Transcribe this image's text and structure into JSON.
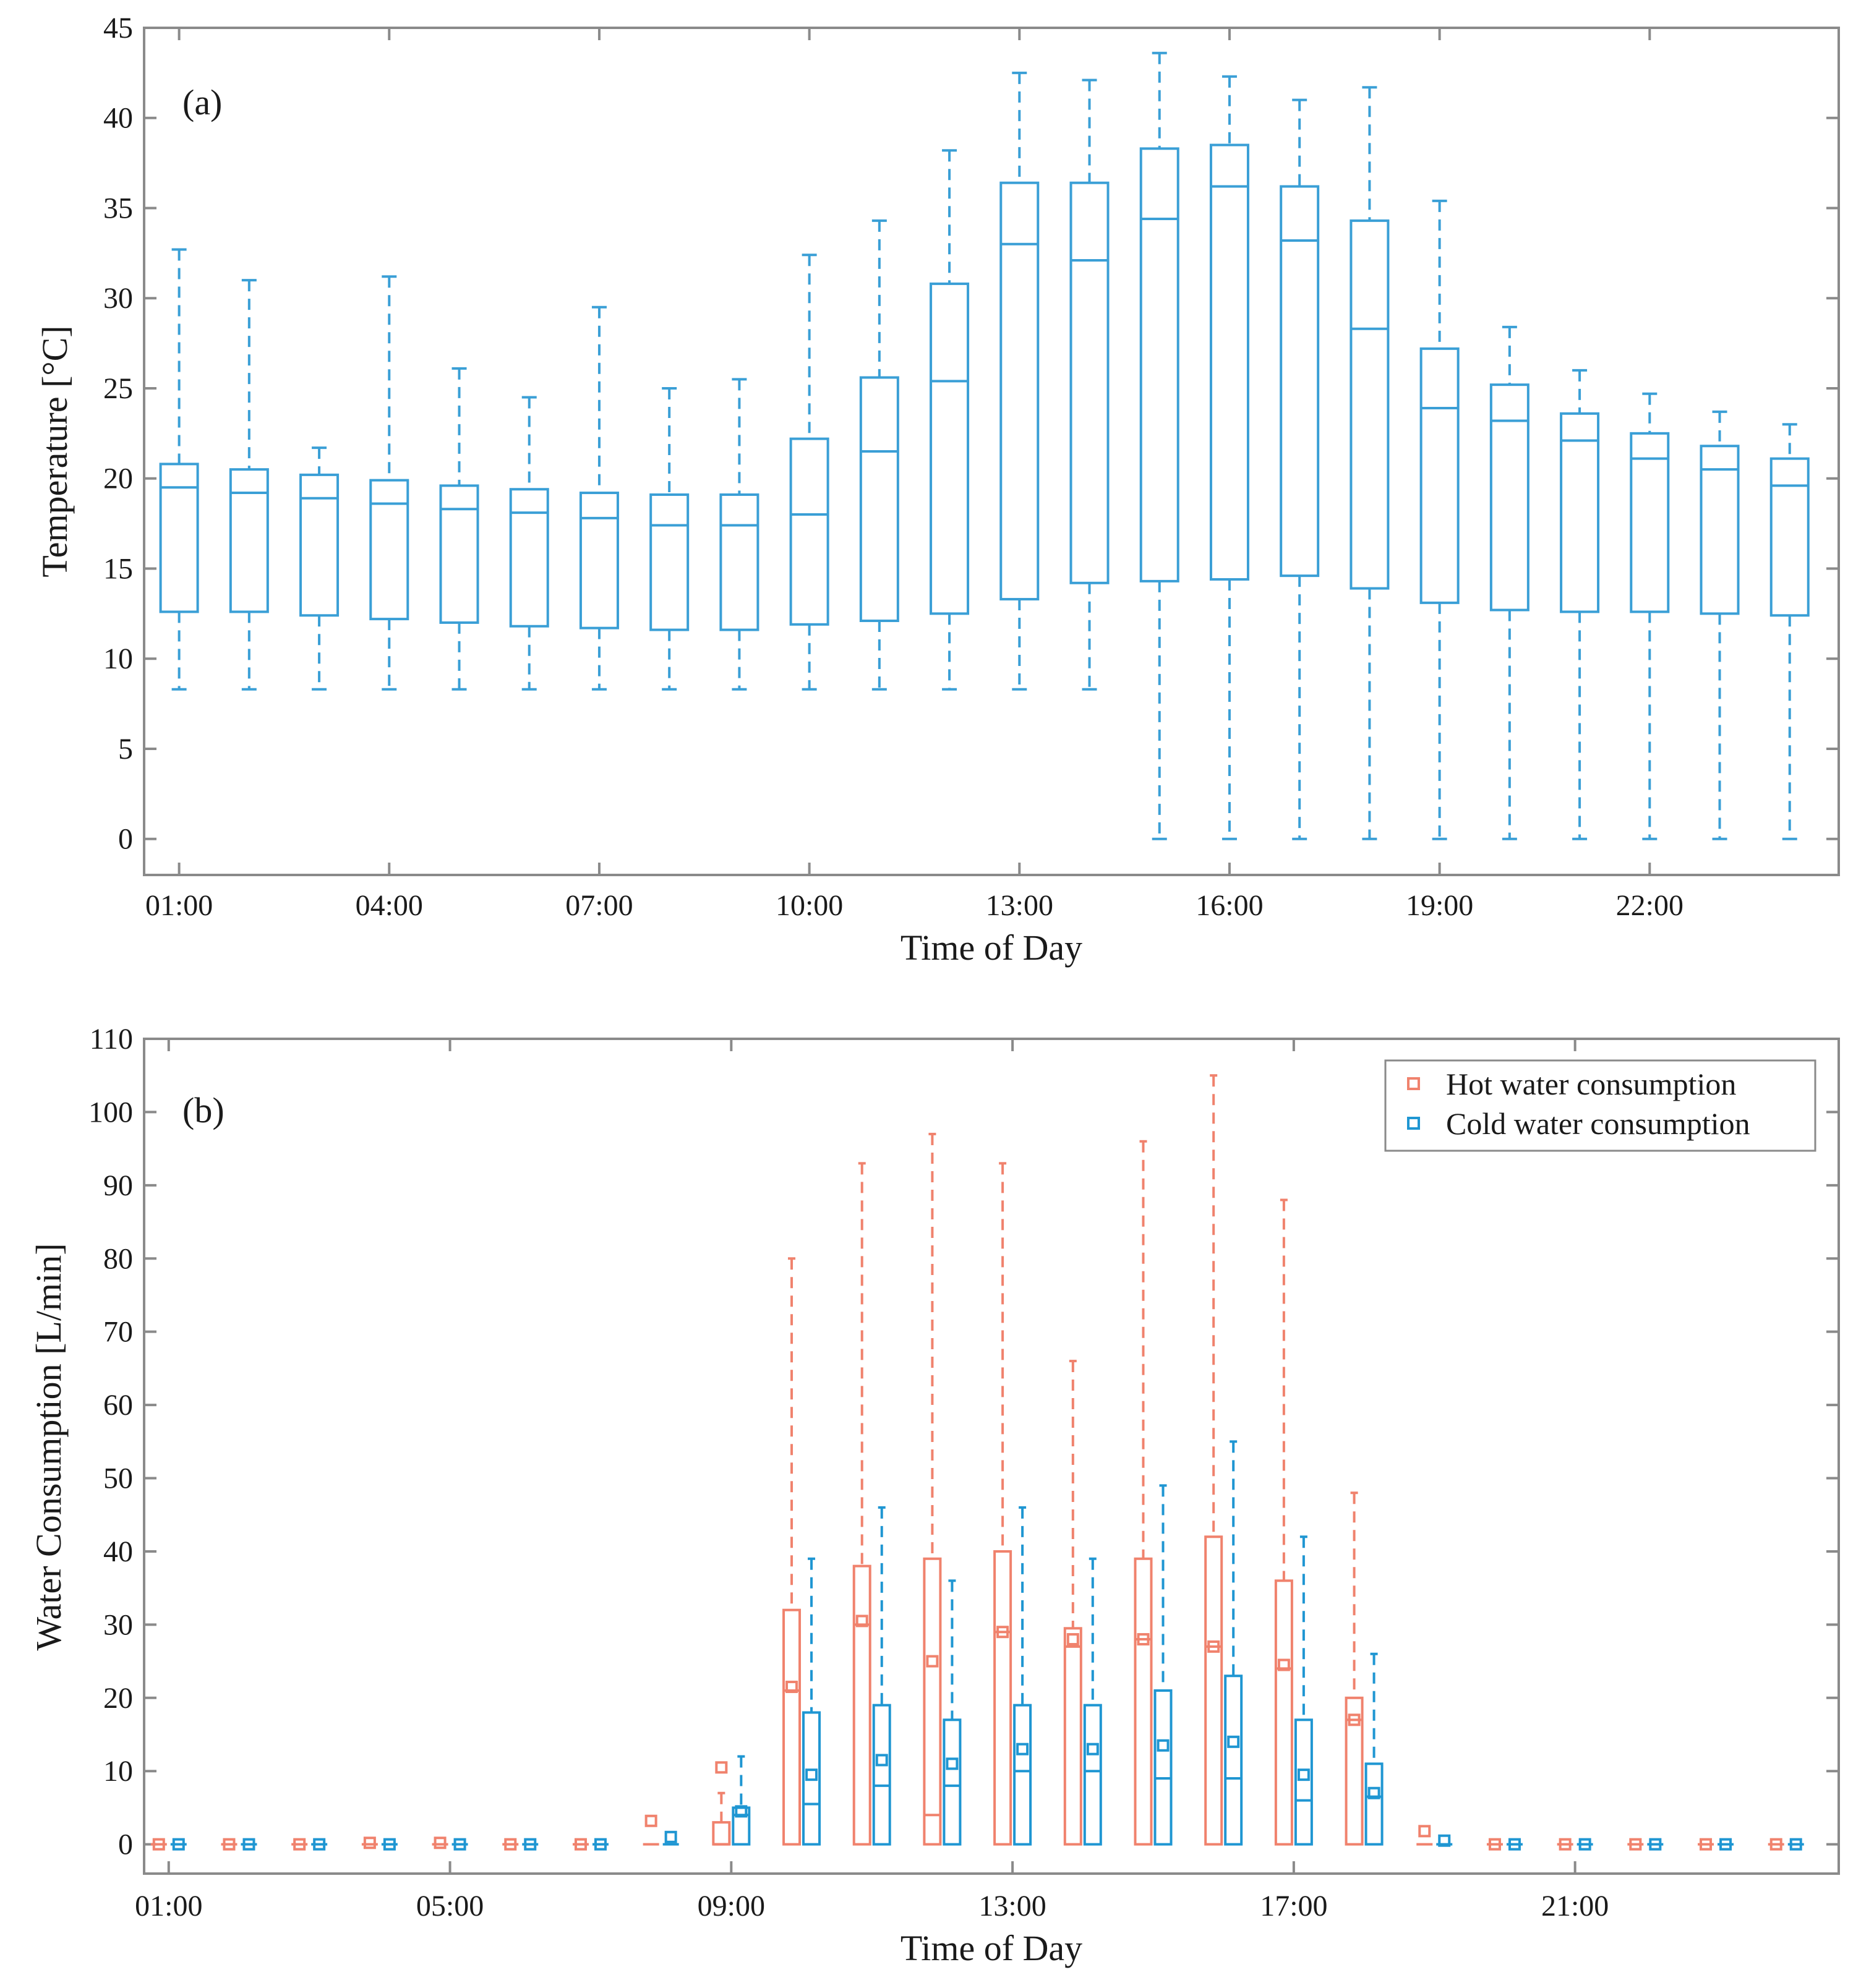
{
  "colors": {
    "temperature": "#3a9fd6",
    "hot": "#f0826d",
    "cold": "#1f96d2",
    "axis": "#8a8a8a",
    "text": "#1a1a1a"
  },
  "chart_data": [
    {
      "type": "box",
      "panel_label": "(a)",
      "xlabel": "Time of Day",
      "ylabel": "Temperature [°C]",
      "ylim": [
        -2,
        45
      ],
      "yticks": [
        0,
        5,
        10,
        15,
        20,
        25,
        30,
        35,
        40,
        45
      ],
      "xlim": [
        0.5,
        24.7
      ],
      "xticks": [
        {
          "x": 1,
          "label": "01:00"
        },
        {
          "x": 4,
          "label": "04:00"
        },
        {
          "x": 7,
          "label": "07:00"
        },
        {
          "x": 10,
          "label": "10:00"
        },
        {
          "x": 13,
          "label": "13:00"
        },
        {
          "x": 16,
          "label": "16:00"
        },
        {
          "x": 19,
          "label": "19:00"
        },
        {
          "x": 22,
          "label": "22:00"
        }
      ],
      "grid": false,
      "series": [
        {
          "boxes": [
            {
              "x": 1,
              "min": 8.3,
              "q1": 12.6,
              "median": 19.5,
              "q3": 20.8,
              "max": 32.7
            },
            {
              "x": 2,
              "min": 8.3,
              "q1": 12.6,
              "median": 19.2,
              "q3": 20.5,
              "max": 31.0
            },
            {
              "x": 3,
              "min": 8.3,
              "q1": 12.4,
              "median": 18.9,
              "q3": 20.2,
              "max": 21.7
            },
            {
              "x": 4,
              "min": 8.3,
              "q1": 12.2,
              "median": 18.6,
              "q3": 19.9,
              "max": 31.2
            },
            {
              "x": 5,
              "min": 8.3,
              "q1": 12.0,
              "median": 18.3,
              "q3": 19.6,
              "max": 26.1
            },
            {
              "x": 6,
              "min": 8.3,
              "q1": 11.8,
              "median": 18.1,
              "q3": 19.4,
              "max": 24.5
            },
            {
              "x": 7,
              "min": 8.3,
              "q1": 11.7,
              "median": 17.8,
              "q3": 19.2,
              "max": 29.5
            },
            {
              "x": 8,
              "min": 8.3,
              "q1": 11.6,
              "median": 17.4,
              "q3": 19.1,
              "max": 25.0
            },
            {
              "x": 9,
              "min": 8.3,
              "q1": 11.6,
              "median": 17.4,
              "q3": 19.1,
              "max": 25.5
            },
            {
              "x": 10,
              "min": 8.3,
              "q1": 11.9,
              "median": 18.0,
              "q3": 22.2,
              "max": 32.4
            },
            {
              "x": 11,
              "min": 8.3,
              "q1": 12.1,
              "median": 21.5,
              "q3": 25.6,
              "max": 34.3
            },
            {
              "x": 12,
              "min": 8.3,
              "q1": 12.5,
              "median": 25.4,
              "q3": 30.8,
              "max": 38.2
            },
            {
              "x": 13,
              "min": 8.3,
              "q1": 13.3,
              "median": 33.0,
              "q3": 36.4,
              "max": 42.5
            },
            {
              "x": 14,
              "min": 8.3,
              "q1": 14.2,
              "median": 32.1,
              "q3": 36.4,
              "max": 42.1
            },
            {
              "x": 15,
              "min": 0,
              "q1": 14.3,
              "median": 34.4,
              "q3": 38.3,
              "max": 43.6
            },
            {
              "x": 16,
              "min": 0,
              "q1": 14.4,
              "median": 36.2,
              "q3": 38.5,
              "max": 42.3
            },
            {
              "x": 17,
              "min": 0,
              "q1": 14.6,
              "median": 33.2,
              "q3": 36.2,
              "max": 41.0
            },
            {
              "x": 18,
              "min": 0,
              "q1": 13.9,
              "median": 28.3,
              "q3": 34.3,
              "max": 41.7
            },
            {
              "x": 19,
              "min": 0,
              "q1": 13.1,
              "median": 23.9,
              "q3": 27.2,
              "max": 35.4
            },
            {
              "x": 20,
              "min": 0,
              "q1": 12.7,
              "median": 23.2,
              "q3": 25.2,
              "max": 28.4
            },
            {
              "x": 21,
              "min": 0,
              "q1": 12.6,
              "median": 22.1,
              "q3": 23.6,
              "max": 26.0
            },
            {
              "x": 22,
              "min": 0,
              "q1": 12.6,
              "median": 21.1,
              "q3": 22.5,
              "max": 24.7
            },
            {
              "x": 23,
              "min": 0,
              "q1": 12.5,
              "median": 20.5,
              "q3": 21.8,
              "max": 23.7
            },
            {
              "x": 24,
              "min": 0,
              "q1": 12.4,
              "median": 19.6,
              "q3": 21.1,
              "max": 23.0
            }
          ]
        }
      ]
    },
    {
      "type": "box",
      "panel_label": "(b)",
      "xlabel": "Time of Day",
      "ylabel": "Water Consumption [L/min]",
      "ylim": [
        -4,
        110
      ],
      "yticks": [
        0,
        10,
        20,
        30,
        40,
        50,
        60,
        70,
        80,
        90,
        100,
        110
      ],
      "xlim": [
        0.65,
        24.75
      ],
      "xticks": [
        {
          "x": 1,
          "label": "01:00"
        },
        {
          "x": 5,
          "label": "05:00"
        },
        {
          "x": 9,
          "label": "09:00"
        },
        {
          "x": 13,
          "label": "13:00"
        },
        {
          "x": 17,
          "label": "17:00"
        },
        {
          "x": 21,
          "label": "21:00"
        }
      ],
      "grid": false,
      "legend": {
        "position": "top-right",
        "entries": [
          "Hot water consumption",
          "Cold water consumption"
        ]
      },
      "series": [
        {
          "name": "Hot water consumption",
          "boxes": [
            {
              "x": 1,
              "min": 0,
              "q1": 0,
              "median": 0,
              "q3": 0,
              "max": 0,
              "mean": 0
            },
            {
              "x": 2,
              "min": 0,
              "q1": 0,
              "median": 0,
              "q3": 0,
              "max": 0,
              "mean": 0
            },
            {
              "x": 3,
              "min": 0,
              "q1": 0,
              "median": 0,
              "q3": 0,
              "max": 0,
              "mean": 0
            },
            {
              "x": 4,
              "min": 0,
              "q1": 0,
              "median": 0,
              "q3": 0,
              "max": 0,
              "mean": 0.2
            },
            {
              "x": 5,
              "min": 0,
              "q1": 0,
              "median": 0,
              "q3": 0,
              "max": 0,
              "mean": 0.2
            },
            {
              "x": 6,
              "min": 0,
              "q1": 0,
              "median": 0,
              "q3": 0,
              "max": 0,
              "mean": 0
            },
            {
              "x": 7,
              "min": 0,
              "q1": 0,
              "median": 0,
              "q3": 0,
              "max": 0,
              "mean": 0
            },
            {
              "x": 8,
              "min": 0,
              "q1": 0,
              "median": 0,
              "q3": 0,
              "max": 0,
              "mean": 3.2
            },
            {
              "x": 9,
              "min": 0,
              "q1": 0,
              "median": 0,
              "q3": 3,
              "max": 7,
              "mean": 10.5
            },
            {
              "x": 10,
              "min": 0,
              "q1": 0,
              "median": 21,
              "q3": 32,
              "max": 80,
              "mean": 21.5
            },
            {
              "x": 11,
              "min": 0,
              "q1": 0,
              "median": 30,
              "q3": 38,
              "max": 93,
              "mean": 30.5
            },
            {
              "x": 12,
              "min": 0,
              "q1": 0,
              "median": 4,
              "q3": 39,
              "max": 97,
              "mean": 25
            },
            {
              "x": 13,
              "min": 0,
              "q1": 0,
              "median": 29,
              "q3": 40,
              "max": 93,
              "mean": 29
            },
            {
              "x": 14,
              "min": 0,
              "q1": 0,
              "median": 27,
              "q3": 29.5,
              "max": 66,
              "mean": 28
            },
            {
              "x": 15,
              "min": 0,
              "q1": 0,
              "median": 28,
              "q3": 39,
              "max": 96,
              "mean": 28
            },
            {
              "x": 16,
              "min": 0,
              "q1": 0,
              "median": 27,
              "q3": 42,
              "max": 105,
              "mean": 27
            },
            {
              "x": 17,
              "min": 0,
              "q1": 0,
              "median": 24,
              "q3": 36,
              "max": 88,
              "mean": 24.5
            },
            {
              "x": 18,
              "min": 0,
              "q1": 0,
              "median": 17,
              "q3": 20,
              "max": 48,
              "mean": 17
            },
            {
              "x": 19,
              "min": 0,
              "q1": 0,
              "median": 0,
              "q3": 0,
              "max": 0,
              "mean": 1.8
            },
            {
              "x": 20,
              "min": 0,
              "q1": 0,
              "median": 0,
              "q3": 0,
              "max": 0,
              "mean": 0
            },
            {
              "x": 21,
              "min": 0,
              "q1": 0,
              "median": 0,
              "q3": 0,
              "max": 0,
              "mean": 0
            },
            {
              "x": 22,
              "min": 0,
              "q1": 0,
              "median": 0,
              "q3": 0,
              "max": 0,
              "mean": 0
            },
            {
              "x": 23,
              "min": 0,
              "q1": 0,
              "median": 0,
              "q3": 0,
              "max": 0,
              "mean": 0
            },
            {
              "x": 24,
              "min": 0,
              "q1": 0,
              "median": 0,
              "q3": 0,
              "max": 0,
              "mean": 0
            }
          ]
        },
        {
          "name": "Cold water consumption",
          "boxes": [
            {
              "x": 1,
              "min": 0,
              "q1": 0,
              "median": 0,
              "q3": 0,
              "max": 0,
              "mean": 0
            },
            {
              "x": 2,
              "min": 0,
              "q1": 0,
              "median": 0,
              "q3": 0,
              "max": 0,
              "mean": 0
            },
            {
              "x": 3,
              "min": 0,
              "q1": 0,
              "median": 0,
              "q3": 0,
              "max": 0,
              "mean": 0
            },
            {
              "x": 4,
              "min": 0,
              "q1": 0,
              "median": 0,
              "q3": 0,
              "max": 0,
              "mean": 0
            },
            {
              "x": 5,
              "min": 0,
              "q1": 0,
              "median": 0,
              "q3": 0,
              "max": 0,
              "mean": 0
            },
            {
              "x": 6,
              "min": 0,
              "q1": 0,
              "median": 0,
              "q3": 0,
              "max": 0,
              "mean": 0
            },
            {
              "x": 7,
              "min": 0,
              "q1": 0,
              "median": 0,
              "q3": 0,
              "max": 0,
              "mean": 0
            },
            {
              "x": 8,
              "min": 0,
              "q1": 0,
              "median": 0,
              "q3": 0,
              "max": 0,
              "mean": 1
            },
            {
              "x": 9,
              "min": 0,
              "q1": 0,
              "median": 4,
              "q3": 5,
              "max": 12,
              "mean": 4.5
            },
            {
              "x": 10,
              "min": 0,
              "q1": 0,
              "median": 5.5,
              "q3": 18,
              "max": 39,
              "mean": 9.5
            },
            {
              "x": 11,
              "min": 0,
              "q1": 0,
              "median": 8,
              "q3": 19,
              "max": 46,
              "mean": 11.5
            },
            {
              "x": 12,
              "min": 0,
              "q1": 0,
              "median": 8,
              "q3": 17,
              "max": 36,
              "mean": 11
            },
            {
              "x": 13,
              "min": 0,
              "q1": 0,
              "median": 10,
              "q3": 19,
              "max": 46,
              "mean": 13
            },
            {
              "x": 14,
              "min": 0,
              "q1": 0,
              "median": 10,
              "q3": 19,
              "max": 39,
              "mean": 13
            },
            {
              "x": 15,
              "min": 0,
              "q1": 0,
              "median": 9,
              "q3": 21,
              "max": 49,
              "mean": 13.5
            },
            {
              "x": 16,
              "min": 0,
              "q1": 0,
              "median": 9,
              "q3": 23,
              "max": 55,
              "mean": 14
            },
            {
              "x": 17,
              "min": 0,
              "q1": 0,
              "median": 6,
              "q3": 17,
              "max": 42,
              "mean": 9.5
            },
            {
              "x": 18,
              "min": 0,
              "q1": 0,
              "median": 6.5,
              "q3": 11,
              "max": 26,
              "mean": 7
            },
            {
              "x": 19,
              "min": 0,
              "q1": 0,
              "median": 0,
              "q3": 0,
              "max": 0,
              "mean": 0.5
            },
            {
              "x": 20,
              "min": 0,
              "q1": 0,
              "median": 0,
              "q3": 0,
              "max": 0,
              "mean": 0
            },
            {
              "x": 21,
              "min": 0,
              "q1": 0,
              "median": 0,
              "q3": 0,
              "max": 0,
              "mean": 0
            },
            {
              "x": 22,
              "min": 0,
              "q1": 0,
              "median": 0,
              "q3": 0,
              "max": 0,
              "mean": 0
            },
            {
              "x": 23,
              "min": 0,
              "q1": 0,
              "median": 0,
              "q3": 0,
              "max": 0,
              "mean": 0
            },
            {
              "x": 24,
              "min": 0,
              "q1": 0,
              "median": 0,
              "q3": 0,
              "max": 0,
              "mean": 0
            }
          ]
        }
      ]
    }
  ]
}
